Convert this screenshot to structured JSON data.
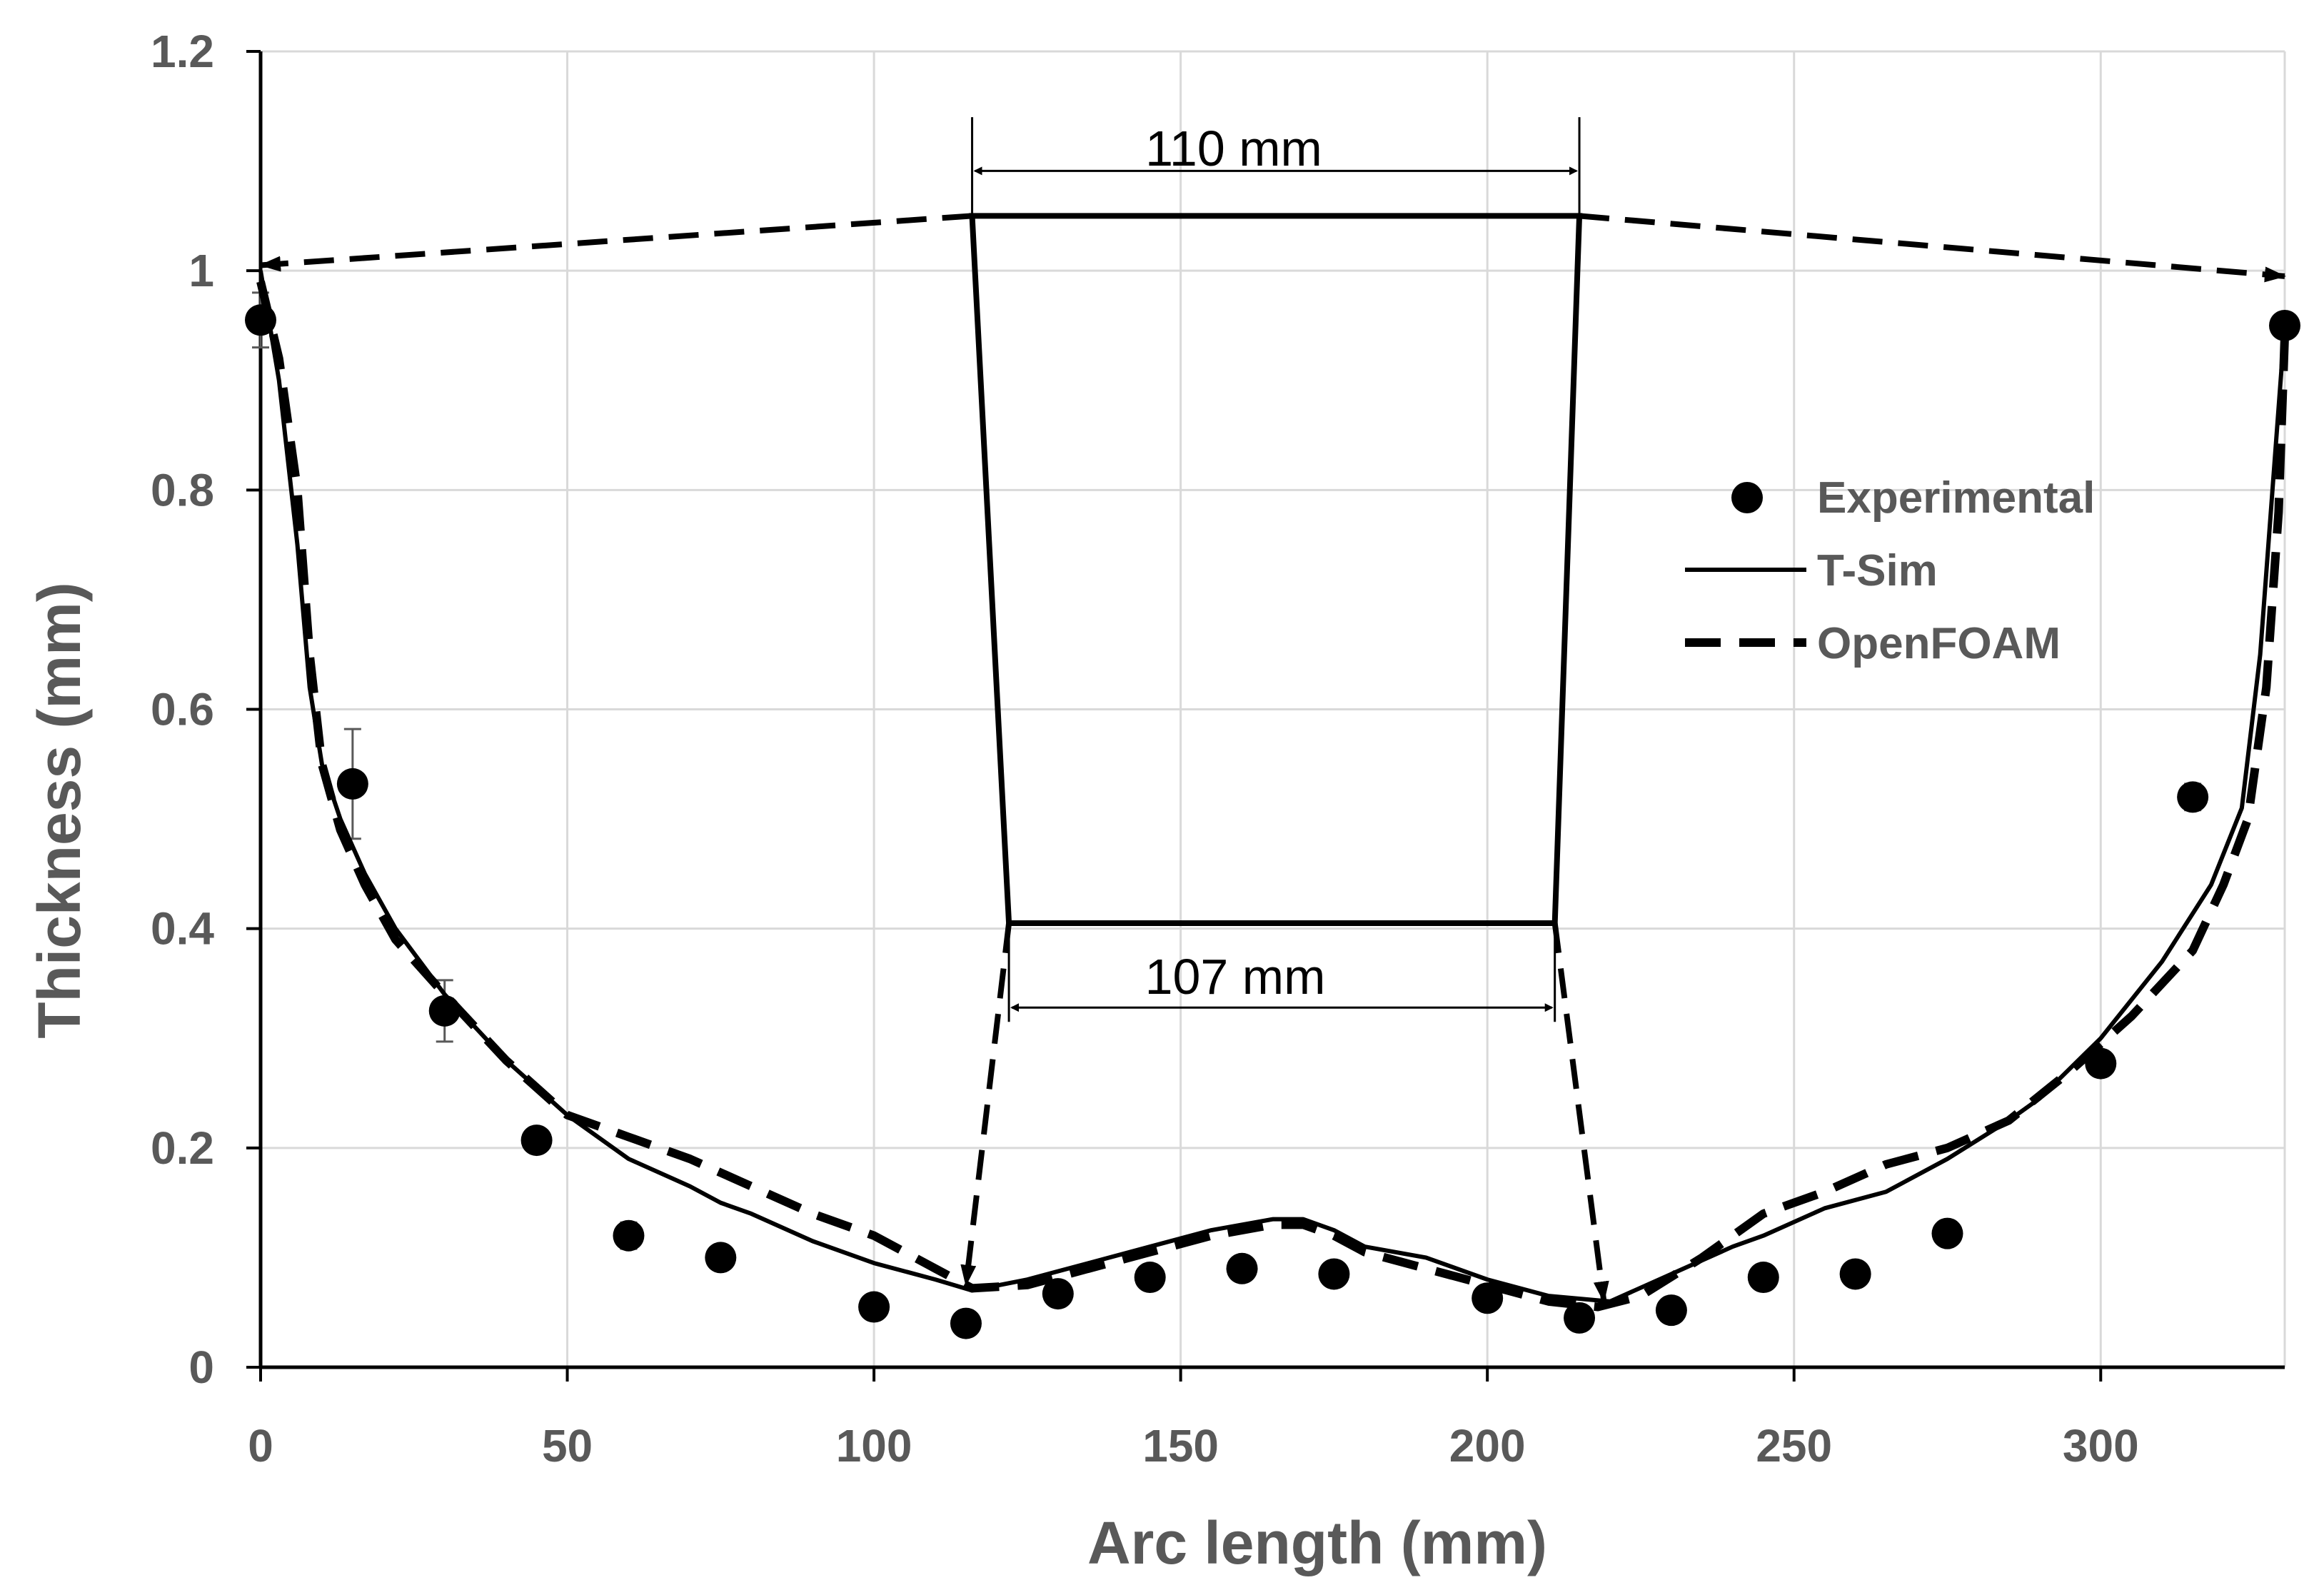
{
  "chart_data": {
    "type": "scatter",
    "title": "",
    "xlabel": "Arc length (mm)",
    "ylabel": "Thickness  (mm)",
    "xlim": [
      0,
      330
    ],
    "ylim": [
      0,
      1.2
    ],
    "x_ticks": [
      0,
      50,
      100,
      150,
      200,
      250,
      300
    ],
    "y_ticks": [
      0,
      0.2,
      0.4,
      0.6,
      0.8,
      1,
      1.2
    ],
    "x_tick_labels": [
      "0",
      "50",
      "100",
      "150",
      "200",
      "250",
      "300"
    ],
    "y_tick_labels": [
      "0",
      "0.2",
      "0.4",
      "0.6",
      "0.8",
      "1",
      "1.2"
    ],
    "grid": true,
    "legend_position": "right",
    "series": [
      {
        "name": "Experimental",
        "style": "markers",
        "color": "#000000",
        "x": [
          0,
          15,
          30,
          45,
          60,
          75,
          100,
          115,
          130,
          145,
          160,
          175,
          200,
          215,
          230,
          245,
          260,
          275,
          300,
          315,
          330
        ],
        "y": [
          0.955,
          0.532,
          0.325,
          0.207,
          0.12,
          0.1,
          0.055,
          0.04,
          0.067,
          0.082,
          0.09,
          0.085,
          0.063,
          0.045,
          0.052,
          0.082,
          0.085,
          0.122,
          0.277,
          0.52,
          0.95
        ],
        "error": [
          0.025,
          0.05,
          0.028,
          0,
          0.012,
          0,
          0,
          0,
          0,
          0,
          0,
          0,
          0,
          0,
          0,
          0,
          0,
          0,
          0,
          0.012,
          0
        ]
      },
      {
        "name": "T-Sim",
        "style": "solid",
        "color": "#000000",
        "x": [
          0,
          3,
          6,
          8,
          10,
          13,
          17,
          22,
          30,
          40,
          50,
          60,
          70,
          75,
          80,
          90,
          100,
          110,
          116,
          125,
          135,
          145,
          155,
          165,
          170,
          175,
          180,
          190,
          200,
          210,
          220,
          230,
          240,
          245,
          255,
          265,
          275,
          285,
          290,
          300,
          310,
          318,
          323,
          326,
          328,
          330
        ],
        "y": [
          1.0,
          0.9,
          0.75,
          0.62,
          0.55,
          0.5,
          0.45,
          0.4,
          0.34,
          0.28,
          0.23,
          0.19,
          0.165,
          0.15,
          0.14,
          0.115,
          0.095,
          0.08,
          0.07,
          0.08,
          0.095,
          0.11,
          0.125,
          0.135,
          0.135,
          0.125,
          0.11,
          0.1,
          0.08,
          0.065,
          0.06,
          0.085,
          0.11,
          0.12,
          0.145,
          0.16,
          0.19,
          0.225,
          0.245,
          0.3,
          0.37,
          0.44,
          0.51,
          0.65,
          0.8,
          0.95
        ]
      },
      {
        "name": "OpenFOAM",
        "style": "dashed",
        "color": "#000000",
        "x": [
          0,
          3,
          6,
          8,
          10,
          13,
          17,
          22,
          30,
          40,
          50,
          60,
          70,
          80,
          90,
          100,
          110,
          116,
          125,
          135,
          145,
          155,
          165,
          170,
          175,
          180,
          190,
          200,
          210,
          218,
          225,
          235,
          245,
          255,
          265,
          275,
          285,
          295,
          305,
          315,
          320,
          324,
          327,
          329,
          330
        ],
        "y": [
          0.99,
          0.92,
          0.8,
          0.65,
          0.55,
          0.49,
          0.44,
          0.39,
          0.34,
          0.28,
          0.23,
          0.21,
          0.19,
          0.165,
          0.14,
          0.12,
          0.09,
          0.072,
          0.075,
          0.09,
          0.105,
          0.12,
          0.13,
          0.13,
          0.12,
          0.105,
          0.09,
          0.075,
          0.06,
          0.055,
          0.065,
          0.1,
          0.14,
          0.16,
          0.185,
          0.2,
          0.225,
          0.27,
          0.32,
          0.38,
          0.44,
          0.5,
          0.62,
          0.78,
          0.94
        ]
      }
    ],
    "annotations": [
      {
        "text": "110 mm",
        "x_from": 116,
        "x_to": 215,
        "y": 1.091
      },
      {
        "text": "107 mm",
        "x_from": 122,
        "x_to": 211,
        "y": 0.328
      }
    ],
    "inset_shape": {
      "top_y": 1.05,
      "bottom_y": 0.405,
      "top_x": [
        116,
        215
      ],
      "bottom_x": [
        122,
        211
      ],
      "ticks_top_y": 1.14,
      "ticks_bottom_y": 0.315,
      "dashed_top": [
        [
          0,
          1.005
        ],
        [
          116,
          1.05
        ],
        [
          215,
          1.05
        ],
        [
          330,
          0.995
        ]
      ],
      "dashed_bottom_arrows": [
        [
          [
            122,
            0.405
          ],
          [
            115,
            0.075
          ]
        ],
        [
          [
            211,
            0.405
          ],
          [
            219,
            0.06
          ]
        ]
      ]
    }
  }
}
